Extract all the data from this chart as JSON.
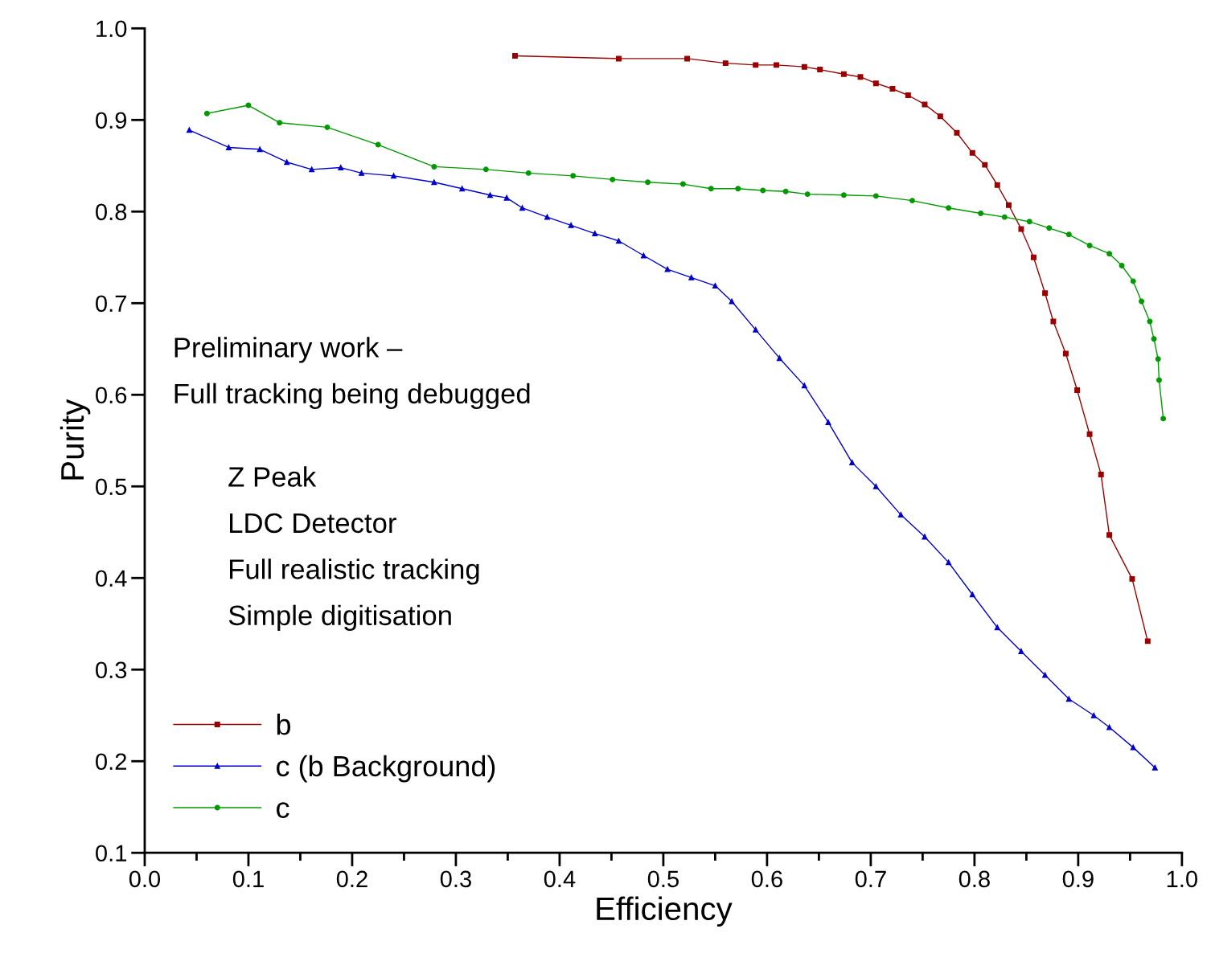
{
  "chart_data": {
    "type": "line",
    "xlabel": "Efficiency",
    "ylabel": "Purity",
    "xlim": [
      0,
      1
    ],
    "ylim": [
      0.1,
      1
    ],
    "xticks": [
      {
        "value": 0,
        "label": "0.0"
      },
      0.1,
      0.2,
      0.3,
      0.4,
      0.5,
      0.6,
      0.7,
      0.8,
      0.9,
      {
        "value": 1,
        "label": "1.0"
      }
    ],
    "yticks": [
      0.1,
      0.2,
      0.3,
      0.4,
      0.5,
      0.6,
      0.7,
      0.8,
      0.9,
      {
        "value": 1,
        "label": "1.0"
      }
    ],
    "grid": false,
    "legend": "bottom left",
    "line_style": "solid",
    "annotations": [
      "Preliminary work –",
      "Full tracking being debugged",
      "Z Peak",
      "LDC Detector",
      "Full realistic tracking",
      "Simple digitisation"
    ],
    "series": [
      {
        "name": "b",
        "color": "#990000",
        "marker": "square",
        "x": [
          0.357,
          0.457,
          0.523,
          0.56,
          0.589,
          0.609,
          0.636,
          0.651,
          0.674,
          0.69,
          0.705,
          0.721,
          0.736,
          0.752,
          0.767,
          0.783,
          0.798,
          0.81,
          0.822,
          0.833,
          0.845,
          0.857,
          0.868,
          0.876,
          0.888,
          0.899,
          0.911,
          0.922,
          0.93,
          0.952,
          0.967
        ],
        "values": [
          0.97,
          0.967,
          0.967,
          0.962,
          0.96,
          0.96,
          0.958,
          0.955,
          0.95,
          0.947,
          0.94,
          0.934,
          0.927,
          0.917,
          0.904,
          0.886,
          0.864,
          0.851,
          0.829,
          0.807,
          0.781,
          0.75,
          0.711,
          0.68,
          0.645,
          0.605,
          0.557,
          0.513,
          0.447,
          0.399,
          0.331
        ]
      },
      {
        "name": "c (b Background)",
        "color": "#0000cc",
        "marker": "triangle",
        "x": [
          0.043,
          0.081,
          0.111,
          0.137,
          0.161,
          0.189,
          0.209,
          0.24,
          0.279,
          0.306,
          0.333,
          0.349,
          0.364,
          0.388,
          0.411,
          0.434,
          0.457,
          0.481,
          0.504,
          0.527,
          0.55,
          0.566,
          0.589,
          0.612,
          0.636,
          0.659,
          0.682,
          0.705,
          0.729,
          0.752,
          0.775,
          0.798,
          0.822,
          0.845,
          0.868,
          0.891,
          0.915,
          0.93,
          0.953,
          0.974
        ],
        "values": [
          0.889,
          0.87,
          0.868,
          0.854,
          0.846,
          0.848,
          0.842,
          0.839,
          0.832,
          0.825,
          0.818,
          0.815,
          0.804,
          0.794,
          0.785,
          0.776,
          0.768,
          0.752,
          0.737,
          0.728,
          0.719,
          0.702,
          0.671,
          0.64,
          0.61,
          0.57,
          0.526,
          0.5,
          0.469,
          0.445,
          0.417,
          0.382,
          0.346,
          0.32,
          0.294,
          0.268,
          0.25,
          0.237,
          0.215,
          0.193
        ]
      },
      {
        "name": "c",
        "color": "#009900",
        "marker": "circle",
        "x": [
          0.06,
          0.1,
          0.13,
          0.176,
          0.225,
          0.279,
          0.329,
          0.37,
          0.413,
          0.451,
          0.485,
          0.519,
          0.546,
          0.572,
          0.596,
          0.618,
          0.639,
          0.674,
          0.705,
          0.74,
          0.775,
          0.806,
          0.829,
          0.853,
          0.872,
          0.891,
          0.911,
          0.93,
          0.942,
          0.953,
          0.961,
          0.969,
          0.973,
          0.977,
          0.978,
          0.982
        ],
        "values": [
          0.907,
          0.916,
          0.897,
          0.892,
          0.873,
          0.849,
          0.846,
          0.842,
          0.839,
          0.835,
          0.832,
          0.83,
          0.825,
          0.825,
          0.823,
          0.822,
          0.819,
          0.818,
          0.817,
          0.812,
          0.804,
          0.798,
          0.794,
          0.789,
          0.782,
          0.775,
          0.763,
          0.754,
          0.741,
          0.724,
          0.702,
          0.68,
          0.661,
          0.639,
          0.616,
          0.574
        ]
      }
    ]
  }
}
